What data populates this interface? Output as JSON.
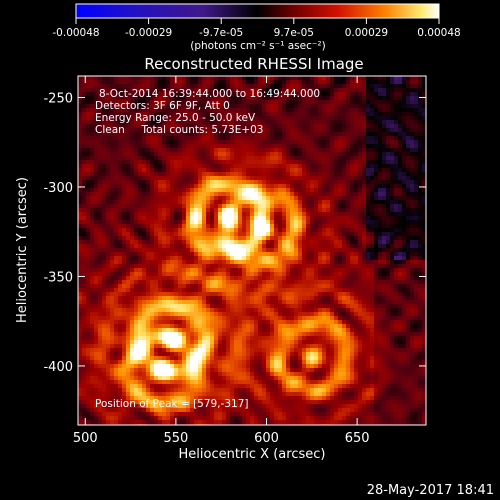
{
  "colorbar": {
    "ticks": [
      "-0.00048",
      "-0.00029",
      "-9.7e-05",
      "9.7e-05",
      "0.00029",
      "0.00048"
    ],
    "unit_label": "(photons cm⁻² s⁻¹ asec⁻²)"
  },
  "info": {
    "line1": "8-Oct-2014 16:39:44.000 to 16:49:44.000",
    "line2": "Detectors: 3F 6F 9F, Att 0",
    "line3": "Energy Range: 25.0 - 50.0 keV",
    "line4": "Clean     Total counts: 5.73E+03",
    "peak": "Position of Peak = [579,-317]"
  },
  "timestamp": "28-May-2017 18:41",
  "chart_data": {
    "type": "heatmap",
    "title": "Reconstructed RHESSI Image",
    "xlabel": "Heliocentric X (arcsec)",
    "ylabel": "Heliocentric Y (arcsec)",
    "xlim": [
      496,
      688
    ],
    "ylim": [
      -433,
      -238
    ],
    "x_ticks": [
      "500",
      "550",
      "600",
      "650"
    ],
    "x_tick_values": [
      500,
      550,
      600,
      650
    ],
    "y_ticks": [
      "-250",
      "-300",
      "-350",
      "-400"
    ],
    "y_tick_values": [
      -250,
      -300,
      -350,
      -400
    ],
    "colorscale": [
      "#0000ff",
      "#2010c0",
      "#301080",
      "#4a1a78",
      "#000000",
      "#5a0010",
      "#a00000",
      "#e04000",
      "#ff9000",
      "#ffe060",
      "#ffffff"
    ],
    "value_range": [
      -0.00048,
      0.00048
    ],
    "peak_position": [
      579,
      -317
    ],
    "bright_sources": [
      {
        "x": 579,
        "y": -317,
        "value": 0.00048
      },
      {
        "x": 548,
        "y": -385,
        "value": 0.0004
      },
      {
        "x": 625,
        "y": -395,
        "value": 0.00036
      },
      {
        "x": 597,
        "y": -323,
        "value": 0.00034
      },
      {
        "x": 543,
        "y": -402,
        "value": 0.00033
      }
    ]
  }
}
